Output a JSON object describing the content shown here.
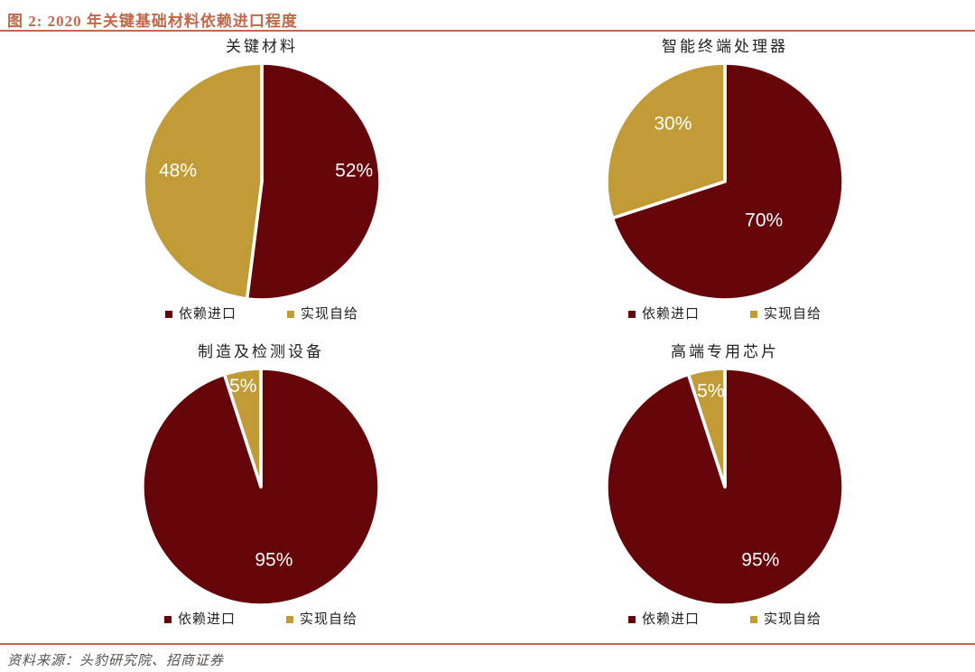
{
  "figure": {
    "title": "图 2: 2020 年关键基础材料依赖进口程度",
    "source": "资料来源：头豹研究院、招商证券"
  },
  "palette": {
    "accent": "#C2684A",
    "import": "#650409",
    "self_supply": "#C19C36",
    "data_label": "#FFFFFF",
    "text": "#222222",
    "source_text": "#55514D"
  },
  "chart_data": [
    {
      "type": "pie",
      "title": "关键材料",
      "categories": [
        "依赖进口",
        "实现自给"
      ],
      "values": [
        52,
        48
      ],
      "data_labels": [
        "52%",
        "48%"
      ],
      "colors": [
        "#650409",
        "#C19C36"
      ],
      "start_angle": 0,
      "direction": "clockwise",
      "legend_position": "bottom",
      "label_pos": [
        [
          0.78,
          -0.09
        ],
        [
          -0.71,
          -0.09
        ]
      ]
    },
    {
      "type": "pie",
      "title": "智能终端处理器",
      "categories": [
        "依赖进口",
        "实现自给"
      ],
      "values": [
        70,
        30
      ],
      "data_labels": [
        "70%",
        "30%"
      ],
      "colors": [
        "#650409",
        "#C19C36"
      ],
      "start_angle": 0,
      "direction": "clockwise",
      "legend_position": "bottom",
      "label_pos": [
        [
          0.33,
          0.33
        ],
        [
          -0.44,
          -0.49
        ]
      ]
    },
    {
      "type": "pie",
      "title": "制造及检测设备",
      "categories": [
        "依赖进口",
        "实现自给"
      ],
      "values": [
        95,
        5
      ],
      "data_labels": [
        "95%",
        "5%"
      ],
      "colors": [
        "#650409",
        "#C19C36"
      ],
      "start_angle": 0,
      "direction": "clockwise",
      "legend_position": "bottom",
      "label_pos": [
        [
          0.11,
          0.62
        ],
        [
          -0.15,
          -0.85
        ]
      ]
    },
    {
      "type": "pie",
      "title": "高端专用芯片",
      "categories": [
        "依赖进口",
        "实现自给"
      ],
      "values": [
        95,
        5
      ],
      "data_labels": [
        "95%",
        "5%"
      ],
      "colors": [
        "#650409",
        "#C19C36"
      ],
      "start_angle": 0,
      "direction": "clockwise",
      "legend_position": "bottom",
      "label_pos": [
        [
          0.3,
          0.62
        ],
        [
          -0.12,
          -0.81
        ]
      ]
    }
  ]
}
